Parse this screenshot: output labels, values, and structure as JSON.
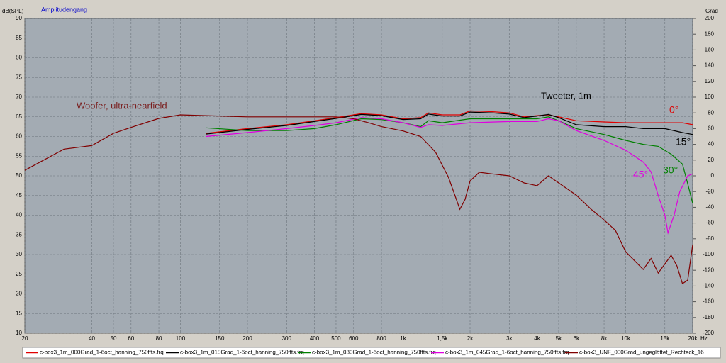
{
  "chart_data": {
    "type": "line",
    "title": "Amplitudengang",
    "y_label": "dB(SPL)",
    "y2_label": "Grad",
    "x_label": "Hz",
    "log_x": true,
    "grid": true,
    "xlim": [
      20,
      20000
    ],
    "ylim": [
      10,
      90
    ],
    "y2lim": [
      -200,
      200
    ],
    "xticks": [
      20,
      40,
      50,
      60,
      80,
      100,
      150,
      200,
      300,
      400,
      500,
      600,
      800,
      {
        "value": 1000,
        "label": "1k"
      },
      {
        "value": 1500,
        "label": "1,5k"
      },
      {
        "value": 2000,
        "label": "2k"
      },
      {
        "value": 3000,
        "label": "3k"
      },
      {
        "value": 4000,
        "label": "4k"
      },
      {
        "value": 5000,
        "label": "5k"
      },
      {
        "value": 6000,
        "label": "6k"
      },
      {
        "value": 8000,
        "label": "8k"
      },
      {
        "value": 10000,
        "label": "10k"
      },
      {
        "value": 15000,
        "label": "15k"
      },
      {
        "value": 20000,
        "label": "20k"
      }
    ],
    "yticks": [
      10,
      15,
      20,
      25,
      30,
      35,
      40,
      45,
      50,
      55,
      60,
      65,
      70,
      75,
      80,
      85,
      90
    ],
    "y2ticks": [
      -200,
      -180,
      -160,
      -140,
      -120,
      -100,
      -80,
      -60,
      -40,
      -20,
      0,
      20,
      40,
      60,
      80,
      100,
      120,
      140,
      160,
      180,
      200
    ],
    "annotations": [
      "Woofer, ultra-nearfield",
      "Tweeter, 1m",
      "0°",
      "15°",
      "30°",
      "45°"
    ],
    "series": [
      {
        "name": "c-box3_1m_000Grad_1-6oct_hanning_750ffts.frq",
        "color": "#e00000",
        "x": [
          130,
          200,
          300,
          400,
          500,
          650,
          800,
          1000,
          1200,
          1300,
          1500,
          1800,
          2000,
          2500,
          3000,
          3500,
          4000,
          4500,
          5000,
          6000,
          8000,
          10000,
          12000,
          15000,
          18000,
          20000
        ],
        "values": [
          60.8,
          62,
          63,
          64,
          64.8,
          65.8,
          65.5,
          64.5,
          64.8,
          66,
          65.5,
          65.5,
          66.5,
          66.3,
          66,
          65,
          65.3,
          65.5,
          65,
          64,
          63.7,
          63.5,
          63.5,
          63.5,
          63.5,
          63
        ]
      },
      {
        "name": "c-box3_1m_015Grad_1-6oct_hanning_750ffts.frq",
        "color": "#000000",
        "x": [
          130,
          200,
          300,
          400,
          500,
          650,
          800,
          1000,
          1200,
          1300,
          1500,
          1800,
          2000,
          2500,
          3000,
          3500,
          4000,
          4500,
          5000,
          6000,
          8000,
          10000,
          12000,
          15000,
          18000,
          20000
        ],
        "values": [
          60.6,
          61.8,
          62.8,
          63.8,
          64.6,
          65.6,
          65.3,
          64.3,
          64.5,
          65.7,
          65.2,
          65.2,
          66.2,
          66,
          65.7,
          64.8,
          65.2,
          65.6,
          64.8,
          63,
          62.5,
          62.5,
          62,
          62,
          61,
          60.5
        ]
      },
      {
        "name": "c-box3_1m_030Grad_1-6oct_hanning_750ffts.frq",
        "color": "#008000",
        "x": [
          130,
          200,
          300,
          400,
          500,
          650,
          800,
          1000,
          1200,
          1300,
          1500,
          2000,
          3000,
          4000,
          4500,
          5000,
          6000,
          8000,
          10000,
          12000,
          14000,
          16000,
          18000,
          19000,
          20000
        ],
        "values": [
          62.2,
          61.5,
          61.5,
          62,
          63,
          64.5,
          64.3,
          63.5,
          62.5,
          64,
          63.5,
          64.5,
          64.5,
          64.5,
          65,
          64,
          62,
          60.5,
          59,
          58,
          57.5,
          55.5,
          53,
          48,
          43
        ]
      },
      {
        "name": "c-box3_1m_045Grad_1-6oct_hanning_750ffts.frq",
        "color": "#e000e0",
        "x": [
          130,
          200,
          300,
          400,
          500,
          650,
          800,
          1000,
          1200,
          1300,
          1500,
          2000,
          3000,
          4000,
          4500,
          5000,
          6000,
          8000,
          10000,
          12000,
          13000,
          14000,
          15000,
          15500,
          16500,
          17500,
          19000,
          20000
        ],
        "values": [
          60,
          61,
          62,
          62.8,
          63.5,
          64.8,
          64.5,
          63.5,
          62.3,
          63,
          62.8,
          63.5,
          63.8,
          63.8,
          64.5,
          64,
          61.5,
          59,
          56.5,
          53.5,
          51,
          45,
          40,
          35.5,
          40,
          46,
          50,
          50.5
        ]
      },
      {
        "name": "c-box3_UNF_000Grad_ungeglättet_Rechteck_16",
        "color": "#800000",
        "x": [
          20,
          30,
          40,
          50,
          60,
          80,
          100,
          130,
          200,
          300,
          400,
          500,
          600,
          700,
          800,
          1000,
          1200,
          1400,
          1600,
          1800,
          1900,
          2000,
          2200,
          2500,
          3000,
          3500,
          4000,
          4500,
          5000,
          6000,
          7000,
          8000,
          9000,
          10000,
          12000,
          13000,
          14000,
          16000,
          17000,
          18000,
          19000,
          20000
        ],
        "values": [
          51.4,
          56.8,
          57.7,
          60.8,
          62.3,
          64.6,
          65.5,
          65.3,
          65,
          65,
          65,
          65,
          64.5,
          63.5,
          62.5,
          61.4,
          60,
          56,
          49.6,
          41.5,
          44,
          48.7,
          50.9,
          50.5,
          50,
          48.2,
          47.5,
          50,
          48.2,
          45.1,
          41.5,
          38.8,
          36.1,
          30.7,
          26.2,
          29,
          25.3,
          29.8,
          27.1,
          22.6,
          23.5,
          32.5
        ]
      }
    ]
  }
}
